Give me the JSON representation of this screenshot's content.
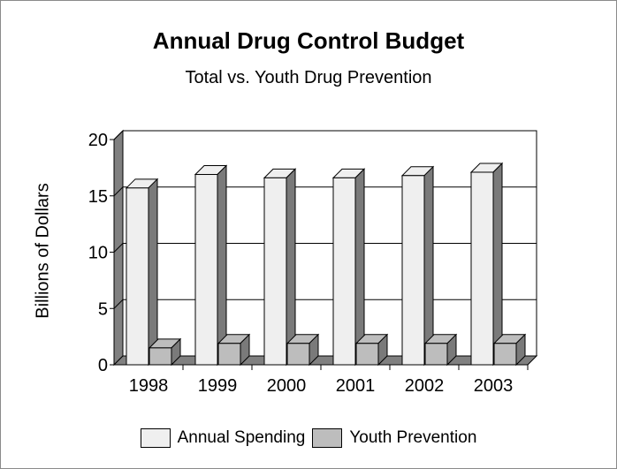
{
  "chart_data": {
    "type": "bar",
    "title": "Annual Drug Control Budget",
    "subtitle": "Total vs. Youth Drug Prevention",
    "xlabel": "",
    "ylabel": "Billions of Dollars",
    "categories": [
      "1998",
      "1999",
      "2000",
      "2001",
      "2002",
      "2003"
    ],
    "series": [
      {
        "name": "Annual Spending",
        "values": [
          15.7,
          16.9,
          16.6,
          16.6,
          16.8,
          17.1
        ],
        "color": "#efefef"
      },
      {
        "name": "Youth Prevention",
        "values": [
          1.5,
          1.9,
          1.9,
          1.9,
          1.9,
          1.9
        ],
        "color": "#bdbdbd"
      }
    ],
    "yticks": [
      "0",
      "5",
      "10",
      "15",
      "20"
    ],
    "ylim": [
      0,
      20
    ],
    "grid": true,
    "legend_position": "bottom",
    "style": "3d-bar"
  }
}
